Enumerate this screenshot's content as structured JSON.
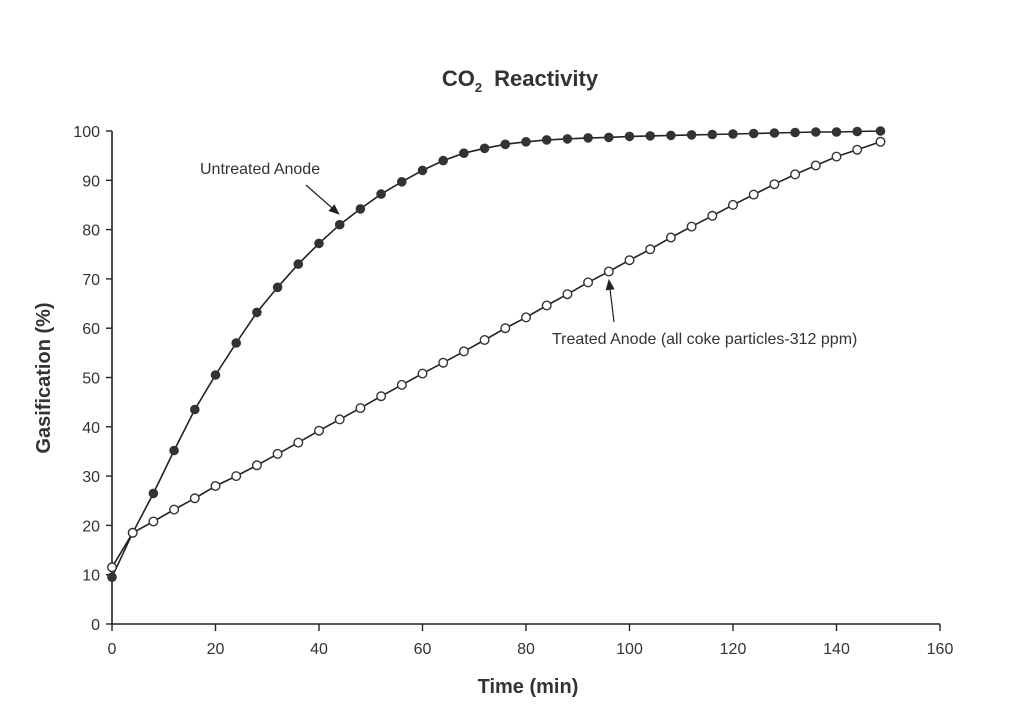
{
  "chart_data": {
    "type": "line",
    "title": "CO2 Reactivity",
    "title_main": "CO",
    "title_sub": "2",
    "title_rest": "Reactivity",
    "xlabel": "Time (min)",
    "ylabel": "Gasification (%)",
    "xlim": [
      0,
      160
    ],
    "ylim": [
      0,
      100
    ],
    "xticks": [
      0,
      20,
      40,
      60,
      80,
      100,
      120,
      140,
      160
    ],
    "yticks": [
      0,
      10,
      20,
      30,
      40,
      50,
      60,
      70,
      80,
      90,
      100
    ],
    "grid": false,
    "series": [
      {
        "name": "Untreated Anode",
        "marker": "filled-circle",
        "color": "#333333",
        "points": [
          [
            0,
            9.5
          ],
          [
            4,
            18.5
          ],
          [
            8,
            26.5
          ],
          [
            12,
            35.2
          ],
          [
            16,
            43.5
          ],
          [
            20,
            50.5
          ],
          [
            24,
            57
          ],
          [
            28,
            63.2
          ],
          [
            32,
            68.3
          ],
          [
            36,
            73
          ],
          [
            40,
            77.2
          ],
          [
            44,
            81
          ],
          [
            48,
            84.2
          ],
          [
            52,
            87.2
          ],
          [
            56,
            89.7
          ],
          [
            60,
            92
          ],
          [
            64,
            94
          ],
          [
            68,
            95.5
          ],
          [
            72,
            96.5
          ],
          [
            76,
            97.3
          ],
          [
            80,
            97.8
          ],
          [
            84,
            98.2
          ],
          [
            88,
            98.4
          ],
          [
            92,
            98.6
          ],
          [
            96,
            98.7
          ],
          [
            100,
            98.9
          ],
          [
            104,
            99
          ],
          [
            108,
            99.1
          ],
          [
            112,
            99.2
          ],
          [
            116,
            99.3
          ],
          [
            120,
            99.4
          ],
          [
            124,
            99.5
          ],
          [
            128,
            99.6
          ],
          [
            132,
            99.7
          ],
          [
            136,
            99.8
          ],
          [
            140,
            99.8
          ],
          [
            144,
            99.9
          ],
          [
            148.5,
            100
          ]
        ]
      },
      {
        "name": "Treated Anode (all coke particles-312 ppm)",
        "marker": "open-circle",
        "color": "#333333",
        "points": [
          [
            0,
            11.5
          ],
          [
            4,
            18.5
          ],
          [
            8,
            20.8
          ],
          [
            12,
            23.2
          ],
          [
            16,
            25.5
          ],
          [
            20,
            28
          ],
          [
            24,
            30
          ],
          [
            28,
            32.2
          ],
          [
            32,
            34.5
          ],
          [
            36,
            36.8
          ],
          [
            40,
            39.2
          ],
          [
            44,
            41.5
          ],
          [
            48,
            43.8
          ],
          [
            52,
            46.2
          ],
          [
            56,
            48.5
          ],
          [
            60,
            50.8
          ],
          [
            64,
            53
          ],
          [
            68,
            55.3
          ],
          [
            72,
            57.6
          ],
          [
            76,
            60
          ],
          [
            80,
            62.2
          ],
          [
            84,
            64.6
          ],
          [
            88,
            66.9
          ],
          [
            92,
            69.3
          ],
          [
            96,
            71.5
          ],
          [
            100,
            73.8
          ],
          [
            104,
            76
          ],
          [
            108,
            78.4
          ],
          [
            112,
            80.6
          ],
          [
            116,
            82.8
          ],
          [
            120,
            85
          ],
          [
            124,
            87.1
          ],
          [
            128,
            89.2
          ],
          [
            132,
            91.2
          ],
          [
            136,
            93
          ],
          [
            140,
            94.8
          ],
          [
            144,
            96.2
          ],
          [
            148.5,
            97.8
          ]
        ]
      }
    ],
    "annotations": [
      {
        "text": "Untreated Anode",
        "series": 0,
        "arrow_to": [
          44,
          83
        ]
      },
      {
        "text": "Treated Anode (all coke particles-312 ppm)",
        "series": 1,
        "arrow_to": [
          96,
          70
        ]
      }
    ]
  }
}
